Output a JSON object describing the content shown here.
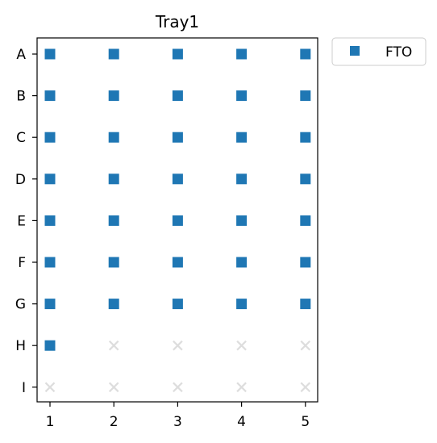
{
  "chart_data": {
    "type": "scatter",
    "title": "Tray1",
    "xlabel": "",
    "ylabel": "",
    "x_categories": [
      "1",
      "2",
      "3",
      "4",
      "5"
    ],
    "y_categories": [
      "A",
      "B",
      "C",
      "D",
      "E",
      "F",
      "G",
      "H",
      "I"
    ],
    "series": [
      {
        "name": "FTO",
        "marker": "square",
        "color": "#1f77b4",
        "points": [
          {
            "x": "1",
            "y": "A"
          },
          {
            "x": "2",
            "y": "A"
          },
          {
            "x": "3",
            "y": "A"
          },
          {
            "x": "4",
            "y": "A"
          },
          {
            "x": "5",
            "y": "A"
          },
          {
            "x": "1",
            "y": "B"
          },
          {
            "x": "2",
            "y": "B"
          },
          {
            "x": "3",
            "y": "B"
          },
          {
            "x": "4",
            "y": "B"
          },
          {
            "x": "5",
            "y": "B"
          },
          {
            "x": "1",
            "y": "C"
          },
          {
            "x": "2",
            "y": "C"
          },
          {
            "x": "3",
            "y": "C"
          },
          {
            "x": "4",
            "y": "C"
          },
          {
            "x": "5",
            "y": "C"
          },
          {
            "x": "1",
            "y": "D"
          },
          {
            "x": "2",
            "y": "D"
          },
          {
            "x": "3",
            "y": "D"
          },
          {
            "x": "4",
            "y": "D"
          },
          {
            "x": "5",
            "y": "D"
          },
          {
            "x": "1",
            "y": "E"
          },
          {
            "x": "2",
            "y": "E"
          },
          {
            "x": "3",
            "y": "E"
          },
          {
            "x": "4",
            "y": "E"
          },
          {
            "x": "5",
            "y": "E"
          },
          {
            "x": "1",
            "y": "F"
          },
          {
            "x": "2",
            "y": "F"
          },
          {
            "x": "3",
            "y": "F"
          },
          {
            "x": "4",
            "y": "F"
          },
          {
            "x": "5",
            "y": "F"
          },
          {
            "x": "1",
            "y": "G"
          },
          {
            "x": "2",
            "y": "G"
          },
          {
            "x": "3",
            "y": "G"
          },
          {
            "x": "4",
            "y": "G"
          },
          {
            "x": "5",
            "y": "G"
          },
          {
            "x": "1",
            "y": "H"
          }
        ]
      }
    ],
    "empty_slots": {
      "marker": "x",
      "color": "#dddddd",
      "points": [
        {
          "x": "2",
          "y": "H"
        },
        {
          "x": "3",
          "y": "H"
        },
        {
          "x": "4",
          "y": "H"
        },
        {
          "x": "5",
          "y": "H"
        },
        {
          "x": "1",
          "y": "I"
        },
        {
          "x": "2",
          "y": "I"
        },
        {
          "x": "3",
          "y": "I"
        },
        {
          "x": "4",
          "y": "I"
        },
        {
          "x": "5",
          "y": "I"
        }
      ]
    },
    "legend": {
      "placement": "outside-upper-right",
      "entries": [
        {
          "label": "FTO",
          "marker": "square",
          "color": "#1f77b4"
        }
      ]
    },
    "grid": false
  }
}
